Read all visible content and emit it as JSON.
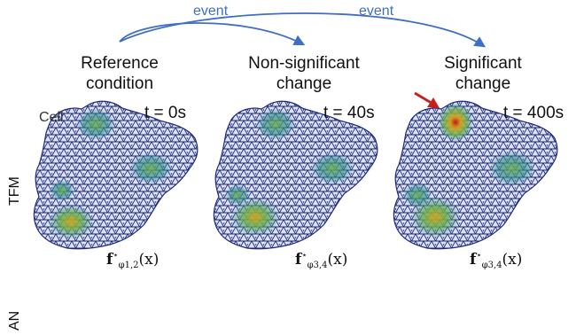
{
  "events": [
    "event",
    "event"
  ],
  "headers": [
    "Reference\ncondition",
    "Non-significant\nchange",
    "Significant\nchange"
  ],
  "times": [
    "t = 0s",
    "t = 40s",
    "t = 400s"
  ],
  "cell_label": "Cell",
  "formulas": [
    {
      "base": "f",
      "sup": "⋆",
      "sub": "φ1,2",
      "arg": "(x)"
    },
    {
      "base": "f",
      "sup": "⋆",
      "sub": "φ3,4",
      "arg": "(x)"
    },
    {
      "base": "f",
      "sup": "⋆",
      "sub": "φ3,4",
      "arg": "(x)"
    }
  ],
  "row_labels": [
    "TFM",
    "AN"
  ],
  "colors": {
    "event_arrow": "#3f6fc4",
    "red_arrow": "#c81e1e",
    "mesh": "#1f2a7a",
    "field_low": "#2a8a8a",
    "field_mid": "#6ab04c",
    "field_high": "#d4a21a",
    "field_peak": "#c0151a"
  }
}
